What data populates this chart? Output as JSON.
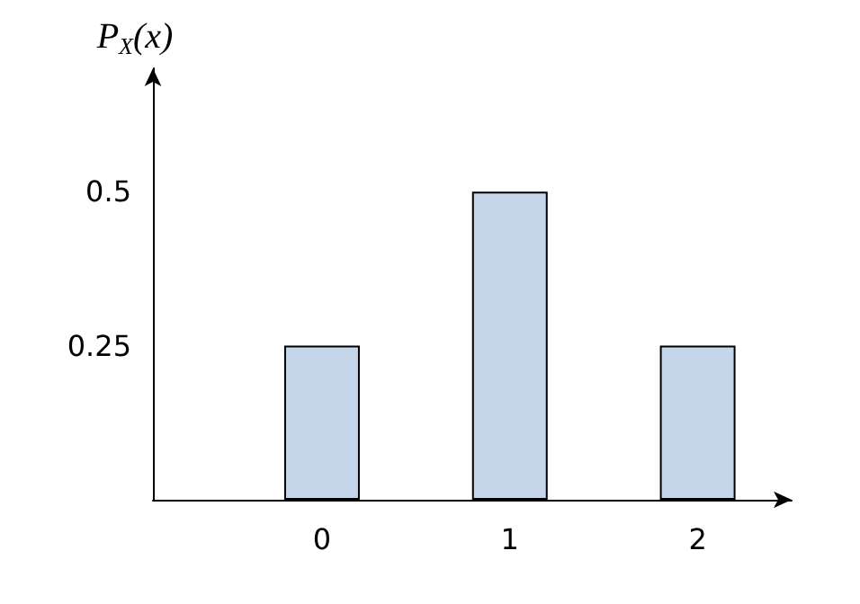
{
  "chart_data": {
    "type": "bar",
    "ylabel": "P$_{X}$(x)",
    "x": [
      0,
      1,
      2
    ],
    "values": [
      0.25,
      0.5,
      0.25
    ],
    "color": "#c5d5ea",
    "xlim": [
      -0.9,
      2.5
    ],
    "xticks": [
      0,
      1,
      2
    ],
    "ylim": [
      0,
      0.7
    ],
    "yticks": [
      0.25,
      0.5
    ],
    "grid": false
  }
}
